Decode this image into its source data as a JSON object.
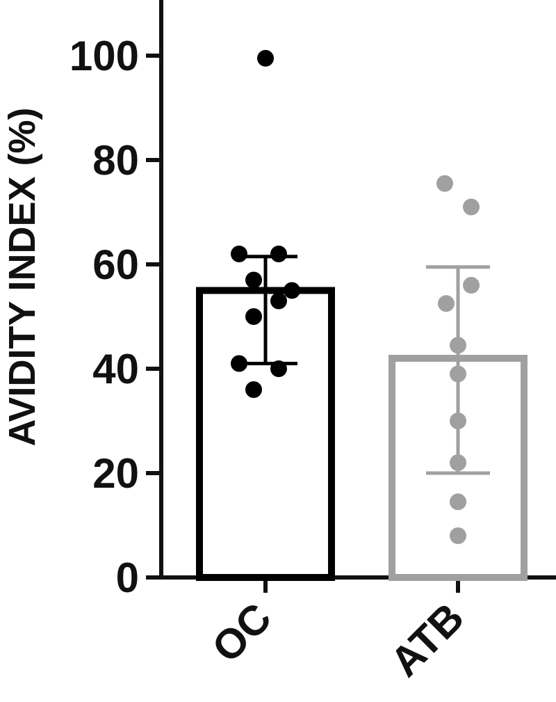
{
  "chart_data": {
    "type": "bar",
    "ylabel": "AVIDITY INDEX (%)",
    "ylim": [
      0,
      110
    ],
    "yticks": [
      "0",
      "20",
      "40",
      "60",
      "80",
      "100"
    ],
    "grid": false,
    "categories": [
      "OC",
      "ATB"
    ],
    "series": [
      {
        "category": "OC",
        "mean": 55,
        "error_low": 41,
        "error_high": 61.5,
        "color": "#000000",
        "points": [
          99.5,
          62,
          62,
          57,
          55,
          53,
          50,
          41,
          40,
          36
        ]
      },
      {
        "category": "ATB",
        "mean": 42,
        "error_low": 20,
        "error_high": 59.5,
        "color": "#a0a0a3",
        "points": [
          75.5,
          71,
          56,
          52.5,
          44.5,
          39,
          30,
          22,
          14.5,
          8
        ]
      }
    ]
  }
}
